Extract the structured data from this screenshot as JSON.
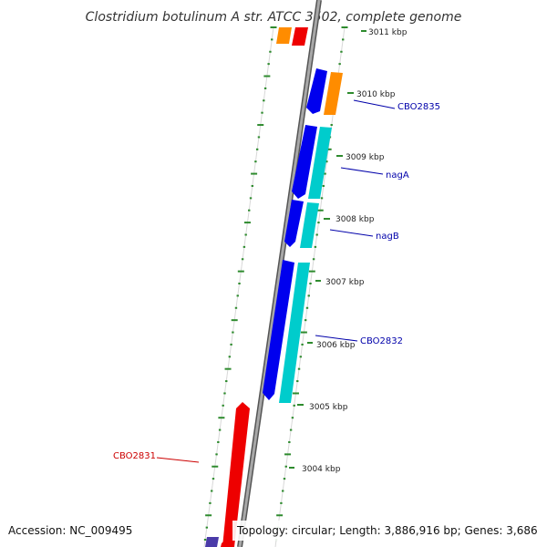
{
  "title": "Clostridium botulinum A str. ATCC 3502, complete genome",
  "footer": {
    "accession": "Accession: NC_009495",
    "summary": "Topology: circular; Length: 3,886,916 bp; Genes: 3,686"
  },
  "scale_labels": [
    "3011 kbp",
    "3010 kbp",
    "3009 kbp",
    "3008 kbp",
    "3007 kbp",
    "3006 kbp",
    "3005 kbp",
    "3004 kbp"
  ],
  "genes": [
    {
      "name": "CBO2835",
      "color": "#0000aa"
    },
    {
      "name": "nagA",
      "color": "#0000aa"
    },
    {
      "name": "nagB",
      "color": "#0000aa"
    },
    {
      "name": "CBO2832",
      "color": "#0000aa"
    },
    {
      "name": "CBO2831",
      "color": "#cc0000"
    }
  ],
  "colors": {
    "backbone": "#8a8a8a",
    "forward_cds": "#0000ee",
    "reverse_cds": "#00cccc",
    "rna_gene": "#ee0000",
    "other_gene": "#ff8c00",
    "tick": "#2e8b2e",
    "ring_outline": "#cccccc"
  }
}
